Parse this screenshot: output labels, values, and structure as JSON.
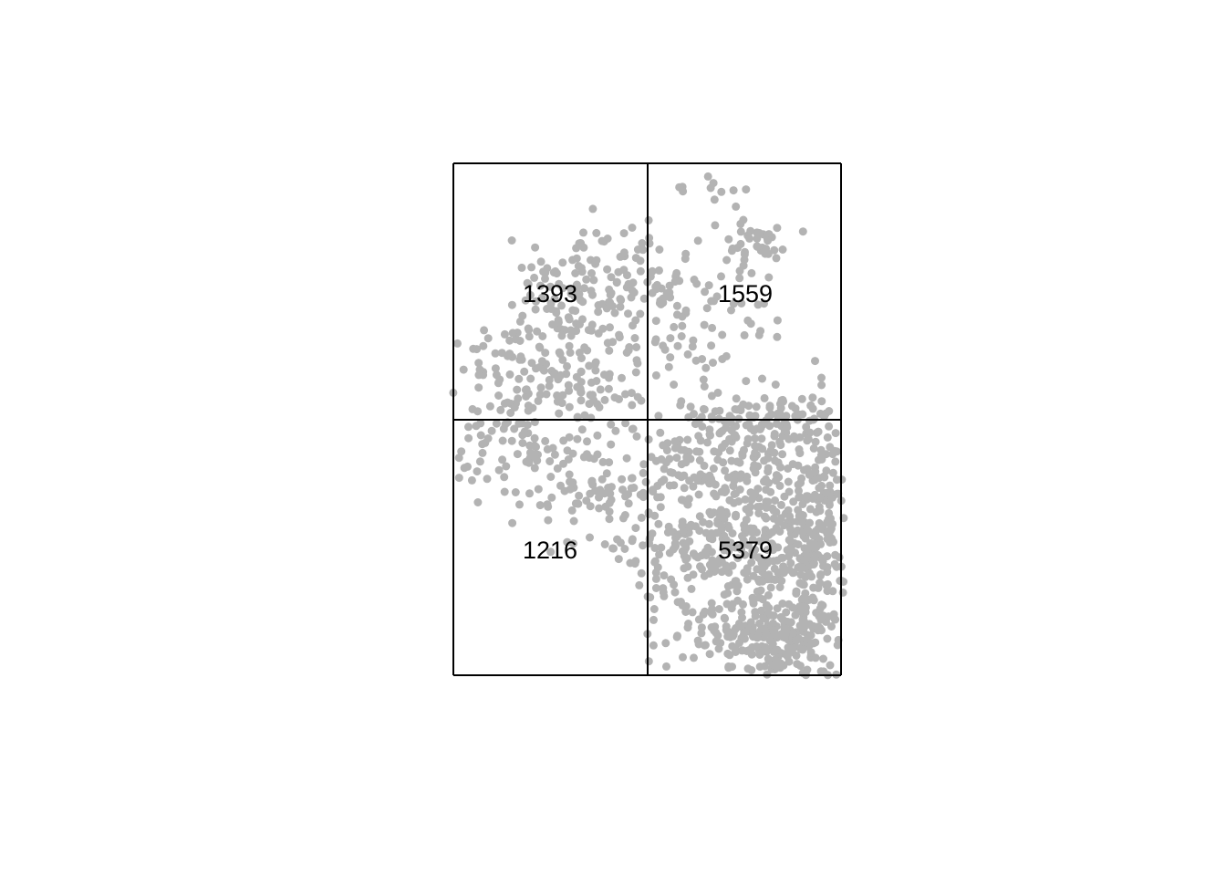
{
  "chart_data": {
    "type": "scatter",
    "title": "",
    "grid": "2x2 quadrat",
    "point_color": "#b3b3b3",
    "line_color": "#000000",
    "quadrat_counts": [
      {
        "quadrat": "top-left",
        "label": "1393"
      },
      {
        "quadrat": "top-right",
        "label": "1559"
      },
      {
        "quadrat": "bottom-left",
        "label": "1216"
      },
      {
        "quadrat": "bottom-right",
        "label": "5379"
      }
    ]
  }
}
